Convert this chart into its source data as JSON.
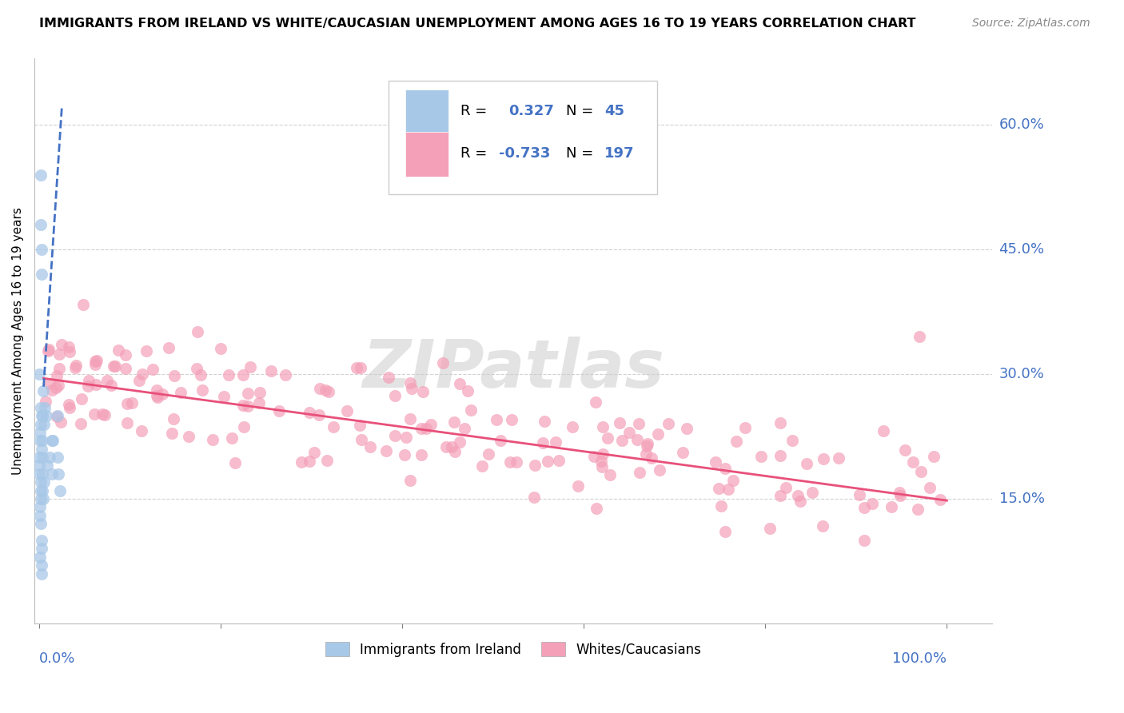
{
  "title": "IMMIGRANTS FROM IRELAND VS WHITE/CAUCASIAN UNEMPLOYMENT AMONG AGES 16 TO 19 YEARS CORRELATION CHART",
  "source": "Source: ZipAtlas.com",
  "ylabel": "Unemployment Among Ages 16 to 19 years",
  "ytick_labels": [
    "15.0%",
    "30.0%",
    "45.0%",
    "60.0%"
  ],
  "ytick_values": [
    0.15,
    0.3,
    0.45,
    0.6
  ],
  "ylim": [
    0.0,
    0.68
  ],
  "xlim": [
    -0.005,
    1.05
  ],
  "blue_R": 0.327,
  "blue_N": 45,
  "pink_R": -0.733,
  "pink_N": 197,
  "blue_color": "#a8c8e8",
  "pink_color": "#f4a0b8",
  "blue_line_color": "#4472c4",
  "pink_line_color": "#e8507a",
  "legend_label_blue": "Immigrants from Ireland",
  "legend_label_pink": "Whites/Caucasians",
  "watermark": "ZIPatlas",
  "title_fontsize": 11.5,
  "source_fontsize": 10,
  "ylabel_fontsize": 11,
  "tick_label_fontsize": 13,
  "legend_fontsize": 12,
  "scatter_size": 110,
  "blue_trend_start_x": 0.005,
  "blue_trend_end_x": 0.025,
  "blue_trend_start_y": 0.285,
  "blue_trend_end_y": 0.62,
  "pink_trend_start_x": 0.005,
  "pink_trend_end_x": 1.0,
  "pink_trend_start_y": 0.295,
  "pink_trend_end_y": 0.148
}
